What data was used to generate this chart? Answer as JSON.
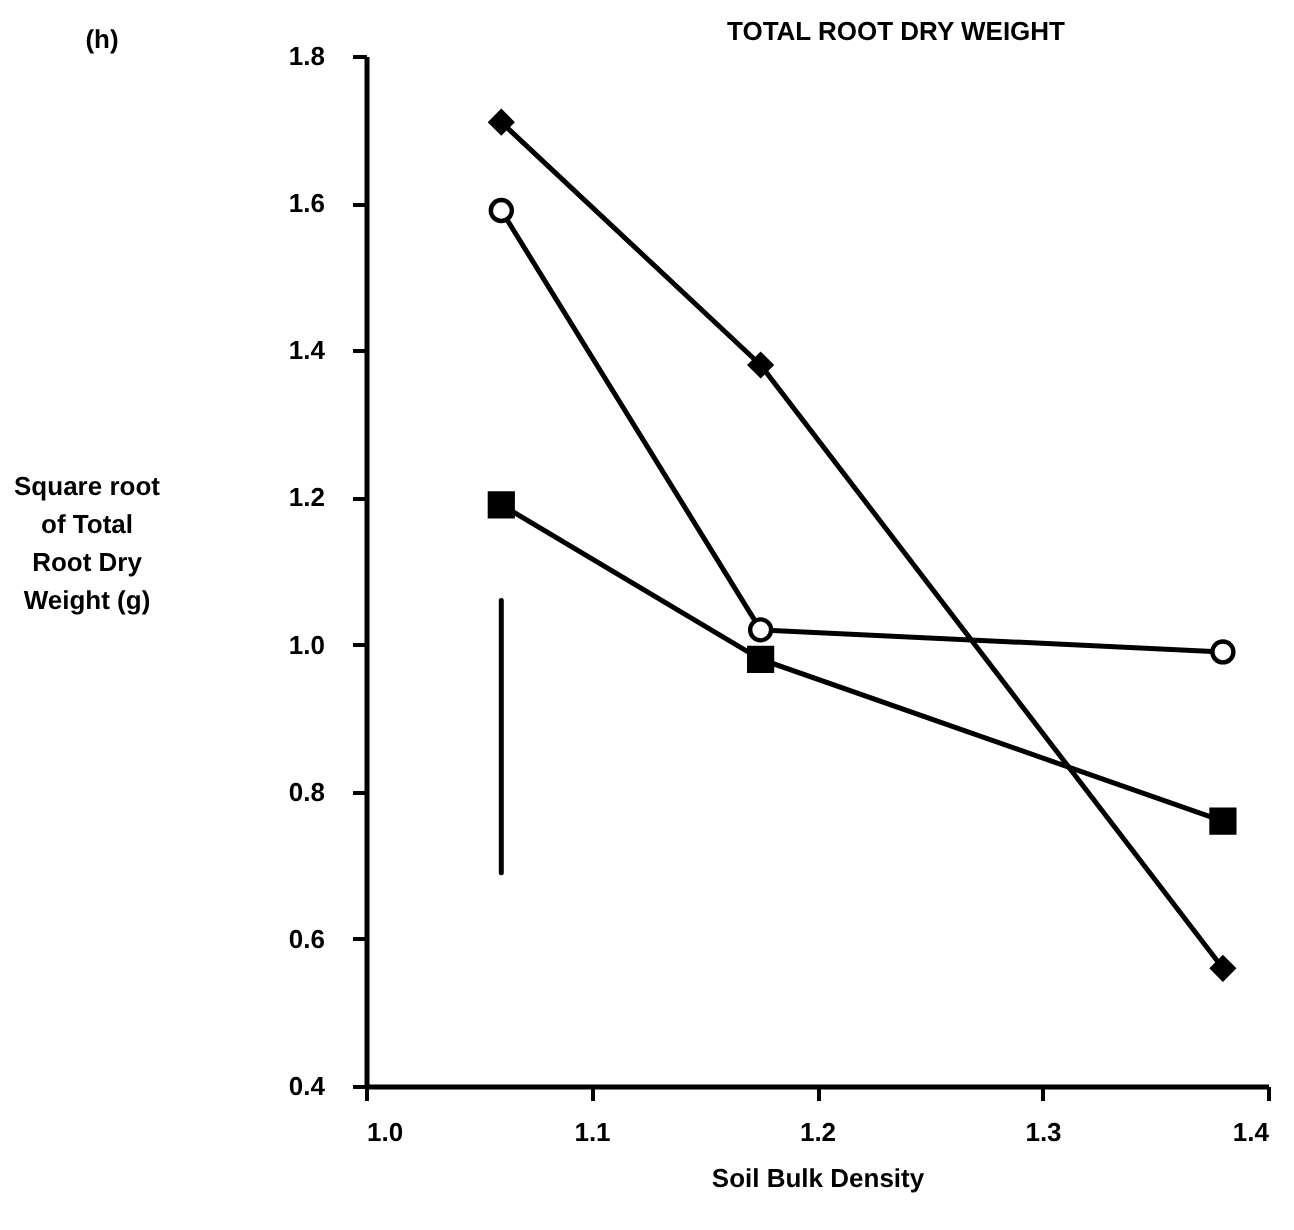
{
  "chart_data": {
    "type": "line",
    "title": "TOTAL ROOT DRY WEIGHT",
    "xlabel": "Soil Bulk Density",
    "ylabel": "Square root of Total Root Dry Weight (g)",
    "annotations": [
      "(h)"
    ],
    "x": [
      1.06,
      1.175,
      1.38
    ],
    "series": [
      {
        "color": "#000000",
        "marker": "diamond",
        "values": [
          1.71,
          1.38,
          0.56
        ]
      },
      {
        "color": "#000000",
        "marker": "circle",
        "values": [
          1.59,
          1.02,
          0.99
        ]
      },
      {
        "color": "#000000",
        "marker": "square",
        "values": [
          1.19,
          0.98,
          0.76
        ]
      },
      {
        "color": "#000000",
        "marker": "none",
        "x": [
          1.06,
          1.06
        ],
        "values": [
          0.69,
          1.06
        ]
      }
    ],
    "xlim": [
      1.0,
      1.4
    ],
    "xticks": [
      {
        "value": 1.0,
        "label": "1.0"
      },
      1.1,
      1.2,
      1.3,
      1.4
    ],
    "ylim": [
      0.4,
      1.8
    ],
    "yticks": [
      0.4,
      0.6,
      0.8,
      {
        "value": 1.0,
        "label": "1.0"
      },
      1.2,
      1.4,
      1.6,
      1.8
    ],
    "grid": false
  }
}
